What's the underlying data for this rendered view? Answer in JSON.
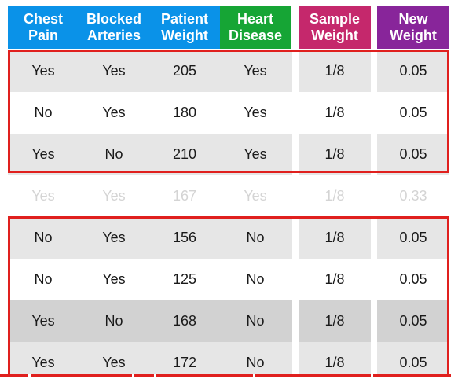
{
  "colors": {
    "chest_pain": "#0a92e8",
    "blocked_arteries": "#0a92e8",
    "patient_weight": "#0a92e8",
    "heart_disease": "#16a535",
    "sample_weight": "#c5286c",
    "new_weight": "#88259a",
    "highlight": "#e0201e"
  },
  "headers": [
    {
      "line1": "Chest",
      "line2": "Pain"
    },
    {
      "line1": "Blocked",
      "line2": "Arteries"
    },
    {
      "line1": "Patient",
      "line2": "Weight"
    },
    {
      "line1": "Heart",
      "line2": "Disease"
    },
    {
      "line1": "Sample",
      "line2": "Weight"
    },
    {
      "line1": "New",
      "line2": "Weight"
    }
  ],
  "rows": [
    {
      "chest_pain": "Yes",
      "blocked_arteries": "Yes",
      "patient_weight": "205",
      "heart_disease": "Yes",
      "sample_weight": "1/8",
      "new_weight": "0.05"
    },
    {
      "chest_pain": "No",
      "blocked_arteries": "Yes",
      "patient_weight": "180",
      "heart_disease": "Yes",
      "sample_weight": "1/8",
      "new_weight": "0.05"
    },
    {
      "chest_pain": "Yes",
      "blocked_arteries": "No",
      "patient_weight": "210",
      "heart_disease": "Yes",
      "sample_weight": "1/8",
      "new_weight": "0.05"
    },
    {
      "chest_pain": "Yes",
      "blocked_arteries": "Yes",
      "patient_weight": "167",
      "heart_disease": "Yes",
      "sample_weight": "1/8",
      "new_weight": "0.33"
    },
    {
      "chest_pain": "No",
      "blocked_arteries": "Yes",
      "patient_weight": "156",
      "heart_disease": "No",
      "sample_weight": "1/8",
      "new_weight": "0.05"
    },
    {
      "chest_pain": "No",
      "blocked_arteries": "Yes",
      "patient_weight": "125",
      "heart_disease": "No",
      "sample_weight": "1/8",
      "new_weight": "0.05"
    },
    {
      "chest_pain": "Yes",
      "blocked_arteries": "No",
      "patient_weight": "168",
      "heart_disease": "No",
      "sample_weight": "1/8",
      "new_weight": "0.05"
    },
    {
      "chest_pain": "Yes",
      "blocked_arteries": "Yes",
      "patient_weight": "172",
      "heart_disease": "No",
      "sample_weight": "1/8",
      "new_weight": "0.05"
    }
  ]
}
